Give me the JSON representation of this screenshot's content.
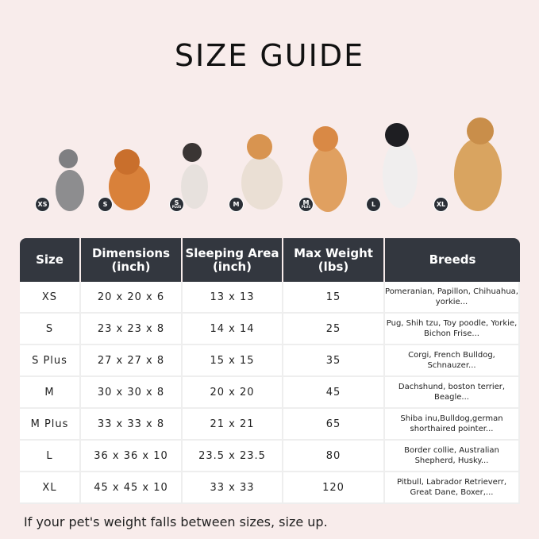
{
  "title": "SIZE GUIDE",
  "size_badges": [
    {
      "label": "XS",
      "sub": ""
    },
    {
      "label": "S",
      "sub": ""
    },
    {
      "label": "S",
      "sub": "PLUS"
    },
    {
      "label": "M",
      "sub": ""
    },
    {
      "label": "M",
      "sub": "PLUS"
    },
    {
      "label": "L",
      "sub": ""
    },
    {
      "label": "XL",
      "sub": ""
    }
  ],
  "table": {
    "headers": [
      "Size",
      "Dimensions\n(inch)",
      "Sleeping Area\n(inch)",
      "Max Weight\n(lbs)",
      "Breeds"
    ],
    "rows": [
      [
        "XS",
        "20 x 20 x 6",
        "13 x 13",
        "15",
        "Pomeranian, Papillon, Chihuahua, yorkie..."
      ],
      [
        "S",
        "23 x 23 x 8",
        "14 x 14",
        "25",
        "Pug, Shih tzu, Toy poodle, Yorkie, Bichon Frise..."
      ],
      [
        "S Plus",
        "27 x 27 x 8",
        "15 x 15",
        "35",
        "Corgi, French Bulldog, Schnauzer..."
      ],
      [
        "M",
        "30 x 30 x 8",
        "20 x 20",
        "45",
        "Dachshund, boston terrier, Beagle..."
      ],
      [
        "M Plus",
        "33 x 33 x 8",
        "21 x 21",
        "65",
        "Shiba inu,Bulldog,german shorthaired pointer..."
      ],
      [
        "L",
        "36 x 36 x 10",
        "23.5 x 23.5",
        "80",
        "Border collie, Australian Shepherd, Husky..."
      ],
      [
        "XL",
        "45 x 45 x 10",
        "33 x 33",
        "120",
        "Pitbull, Labrador Retrieverr, Great Dane, Boxer,..."
      ]
    ]
  },
  "footer": "If your pet's weight falls between sizes, size up.",
  "colors": {
    "background": "#f8eceb",
    "header": "#33373f"
  }
}
